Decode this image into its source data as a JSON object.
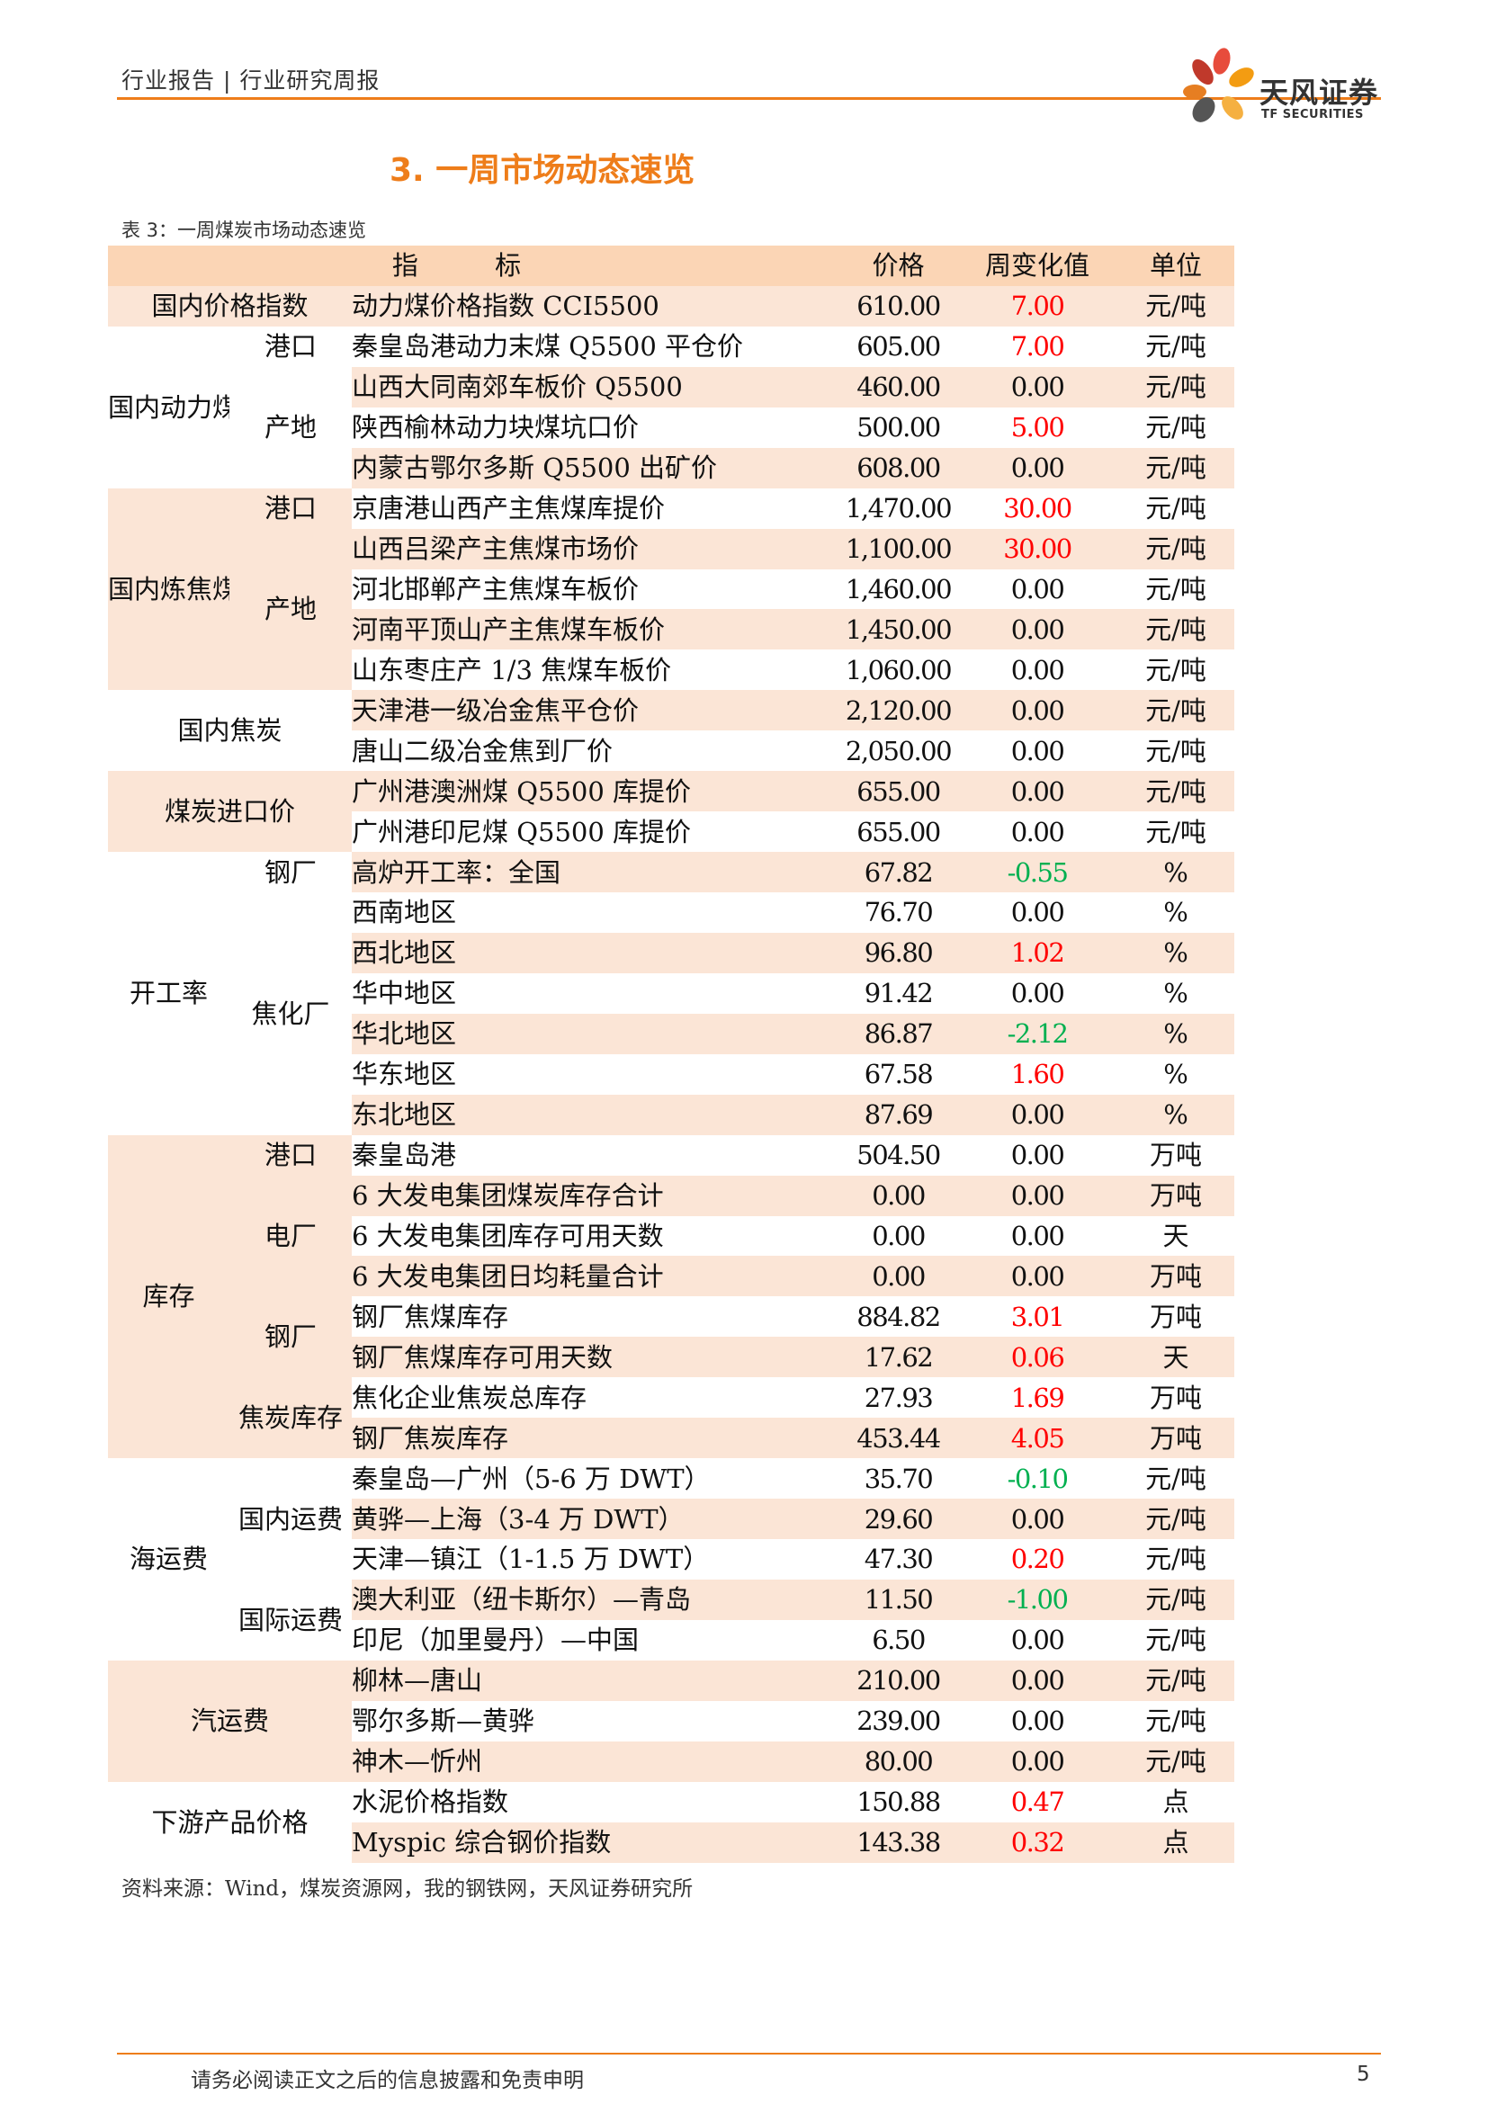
{
  "header": {
    "crumb": "行业报告 | 行业研究周报"
  },
  "logo": {
    "cn": "天风证券",
    "en": "TF SECURITIES"
  },
  "section_title": "3. 一周市场动态速览",
  "table_caption": "表 3：一周煤炭市场动态速览",
  "table_header": [
    "指 标",
    "价格",
    "周变化值",
    "单位"
  ],
  "groups": [
    {
      "label": "国内价格指数",
      "subs": [
        {
          "label": "",
          "rows": [
            {
              "ind": "动力煤价格指数 CCI5500",
              "price": "610.00",
              "chg": "7.00",
              "dir": "up",
              "unit": "元/吨"
            }
          ]
        }
      ]
    },
    {
      "label": "国内动力煤",
      "subs": [
        {
          "label": "港口",
          "rows": [
            {
              "ind": "秦皇岛港动力末煤 Q5500 平仓价",
              "price": "605.00",
              "chg": "7.00",
              "dir": "up",
              "unit": "元/吨"
            }
          ]
        },
        {
          "label": "产地",
          "rows": [
            {
              "ind": "山西大同南郊车板价 Q5500",
              "price": "460.00",
              "chg": "0.00",
              "dir": "flat",
              "unit": "元/吨"
            },
            {
              "ind": "陕西榆林动力块煤坑口价",
              "price": "500.00",
              "chg": "5.00",
              "dir": "up",
              "unit": "元/吨"
            },
            {
              "ind": "内蒙古鄂尔多斯 Q5500 出矿价",
              "price": "608.00",
              "chg": "0.00",
              "dir": "flat",
              "unit": "元/吨"
            }
          ]
        }
      ]
    },
    {
      "label": "国内炼焦煤",
      "subs": [
        {
          "label": "港口",
          "rows": [
            {
              "ind": "京唐港山西产主焦煤库提价",
              "price": "1,470.00",
              "chg": "30.00",
              "dir": "up",
              "unit": "元/吨"
            }
          ]
        },
        {
          "label": "产地",
          "rows": [
            {
              "ind": "山西吕梁产主焦煤市场价",
              "price": "1,100.00",
              "chg": "30.00",
              "dir": "up",
              "unit": "元/吨"
            },
            {
              "ind": "河北邯郸产主焦煤车板价",
              "price": "1,460.00",
              "chg": "0.00",
              "dir": "flat",
              "unit": "元/吨"
            },
            {
              "ind": "河南平顶山产主焦煤车板价",
              "price": "1,450.00",
              "chg": "0.00",
              "dir": "flat",
              "unit": "元/吨"
            },
            {
              "ind": "山东枣庄产 1/3 焦煤车板价",
              "price": "1,060.00",
              "chg": "0.00",
              "dir": "flat",
              "unit": "元/吨"
            }
          ]
        }
      ]
    },
    {
      "label": "国内焦炭",
      "subs": [
        {
          "label": "",
          "rows": [
            {
              "ind": "天津港一级冶金焦平仓价",
              "price": "2,120.00",
              "chg": "0.00",
              "dir": "flat",
              "unit": "元/吨"
            },
            {
              "ind": "唐山二级冶金焦到厂价",
              "price": "2,050.00",
              "chg": "0.00",
              "dir": "flat",
              "unit": "元/吨"
            }
          ]
        }
      ]
    },
    {
      "label": "煤炭进口价",
      "subs": [
        {
          "label": "",
          "rows": [
            {
              "ind": "广州港澳洲煤 Q5500 库提价",
              "price": "655.00",
              "chg": "0.00",
              "dir": "flat",
              "unit": "元/吨"
            },
            {
              "ind": "广州港印尼煤 Q5500 库提价",
              "price": "655.00",
              "chg": "0.00",
              "dir": "flat",
              "unit": "元/吨"
            }
          ]
        }
      ]
    },
    {
      "label": "开工率",
      "subs": [
        {
          "label": "钢厂",
          "rows": [
            {
              "ind": "高炉开工率：全国",
              "price": "67.82",
              "chg": "-0.55",
              "dir": "down",
              "unit": "%"
            }
          ]
        },
        {
          "label": "焦化厂",
          "rows": [
            {
              "ind": "西南地区",
              "price": "76.70",
              "chg": "0.00",
              "dir": "flat",
              "unit": "%"
            },
            {
              "ind": "西北地区",
              "price": "96.80",
              "chg": "1.02",
              "dir": "up",
              "unit": "%"
            },
            {
              "ind": "华中地区",
              "price": "91.42",
              "chg": "0.00",
              "dir": "flat",
              "unit": "%"
            },
            {
              "ind": "华北地区",
              "price": "86.87",
              "chg": "-2.12",
              "dir": "down",
              "unit": "%"
            },
            {
              "ind": "华东地区",
              "price": "67.58",
              "chg": "1.60",
              "dir": "up",
              "unit": "%"
            },
            {
              "ind": "东北地区",
              "price": "87.69",
              "chg": "0.00",
              "dir": "flat",
              "unit": "%"
            }
          ]
        }
      ]
    },
    {
      "label": "库存",
      "subs": [
        {
          "label": "港口",
          "rows": [
            {
              "ind": "秦皇岛港",
              "price": "504.50",
              "chg": "0.00",
              "dir": "flat",
              "unit": "万吨"
            }
          ]
        },
        {
          "label": "电厂",
          "rows": [
            {
              "ind": "6 大发电集团煤炭库存合计",
              "price": "0.00",
              "chg": "0.00",
              "dir": "flat",
              "unit": "万吨"
            },
            {
              "ind": "6 大发电集团库存可用天数",
              "price": "0.00",
              "chg": "0.00",
              "dir": "flat",
              "unit": "天"
            },
            {
              "ind": "6 大发电集团日均耗量合计",
              "price": "0.00",
              "chg": "0.00",
              "dir": "flat",
              "unit": "万吨"
            }
          ]
        },
        {
          "label": "钢厂",
          "rows": [
            {
              "ind": "钢厂焦煤库存",
              "price": "884.82",
              "chg": "3.01",
              "dir": "up",
              "unit": "万吨"
            },
            {
              "ind": "钢厂焦煤库存可用天数",
              "price": "17.62",
              "chg": "0.06",
              "dir": "up",
              "unit": "天"
            }
          ]
        },
        {
          "label": "焦炭库存",
          "rows": [
            {
              "ind": "焦化企业焦炭总库存",
              "price": "27.93",
              "chg": "1.69",
              "dir": "up",
              "unit": "万吨"
            },
            {
              "ind": "钢厂焦炭库存",
              "price": "453.44",
              "chg": "4.05",
              "dir": "up",
              "unit": "万吨"
            }
          ]
        }
      ]
    },
    {
      "label": "海运费",
      "subs": [
        {
          "label": "国内运费",
          "rows": [
            {
              "ind": "秦皇岛—广州（5-6 万 DWT）",
              "price": "35.70",
              "chg": "-0.10",
              "dir": "down",
              "unit": "元/吨"
            },
            {
              "ind": "黄骅—上海（3-4 万 DWT）",
              "price": "29.60",
              "chg": "0.00",
              "dir": "flat",
              "unit": "元/吨"
            },
            {
              "ind": "天津—镇江（1-1.5 万 DWT）",
              "price": "47.30",
              "chg": "0.20",
              "dir": "up",
              "unit": "元/吨"
            }
          ]
        },
        {
          "label": "国际运费",
          "rows": [
            {
              "ind": "澳大利亚（纽卡斯尔）—青岛",
              "price": "11.50",
              "chg": "-1.00",
              "dir": "down",
              "unit": "元/吨"
            },
            {
              "ind": "印尼（加里曼丹）—中国",
              "price": "6.50",
              "chg": "0.00",
              "dir": "flat",
              "unit": "元/吨"
            }
          ]
        }
      ]
    },
    {
      "label": "汽运费",
      "subs": [
        {
          "label": "",
          "rows": [
            {
              "ind": "柳林—唐山",
              "price": "210.00",
              "chg": "0.00",
              "dir": "flat",
              "unit": "元/吨"
            },
            {
              "ind": "鄂尔多斯—黄骅",
              "price": "239.00",
              "chg": "0.00",
              "dir": "flat",
              "unit": "元/吨"
            },
            {
              "ind": "神木—忻州",
              "price": "80.00",
              "chg": "0.00",
              "dir": "flat",
              "unit": "元/吨"
            }
          ]
        }
      ]
    },
    {
      "label": "下游产品价格",
      "subs": [
        {
          "label": "",
          "rows": [
            {
              "ind": "水泥价格指数",
              "price": "150.88",
              "chg": "0.47",
              "dir": "up",
              "unit": "点"
            },
            {
              "ind": "Myspic 综合钢价指数",
              "price": "143.38",
              "chg": "0.32",
              "dir": "up",
              "unit": "点"
            }
          ]
        }
      ]
    }
  ],
  "source": "资料来源：Wind，煤炭资源网，我的钢铁网，天风证券研究所",
  "footer": {
    "disclaimer": "请务必阅读正文之后的信息披露和免责申明",
    "page": "5"
  }
}
